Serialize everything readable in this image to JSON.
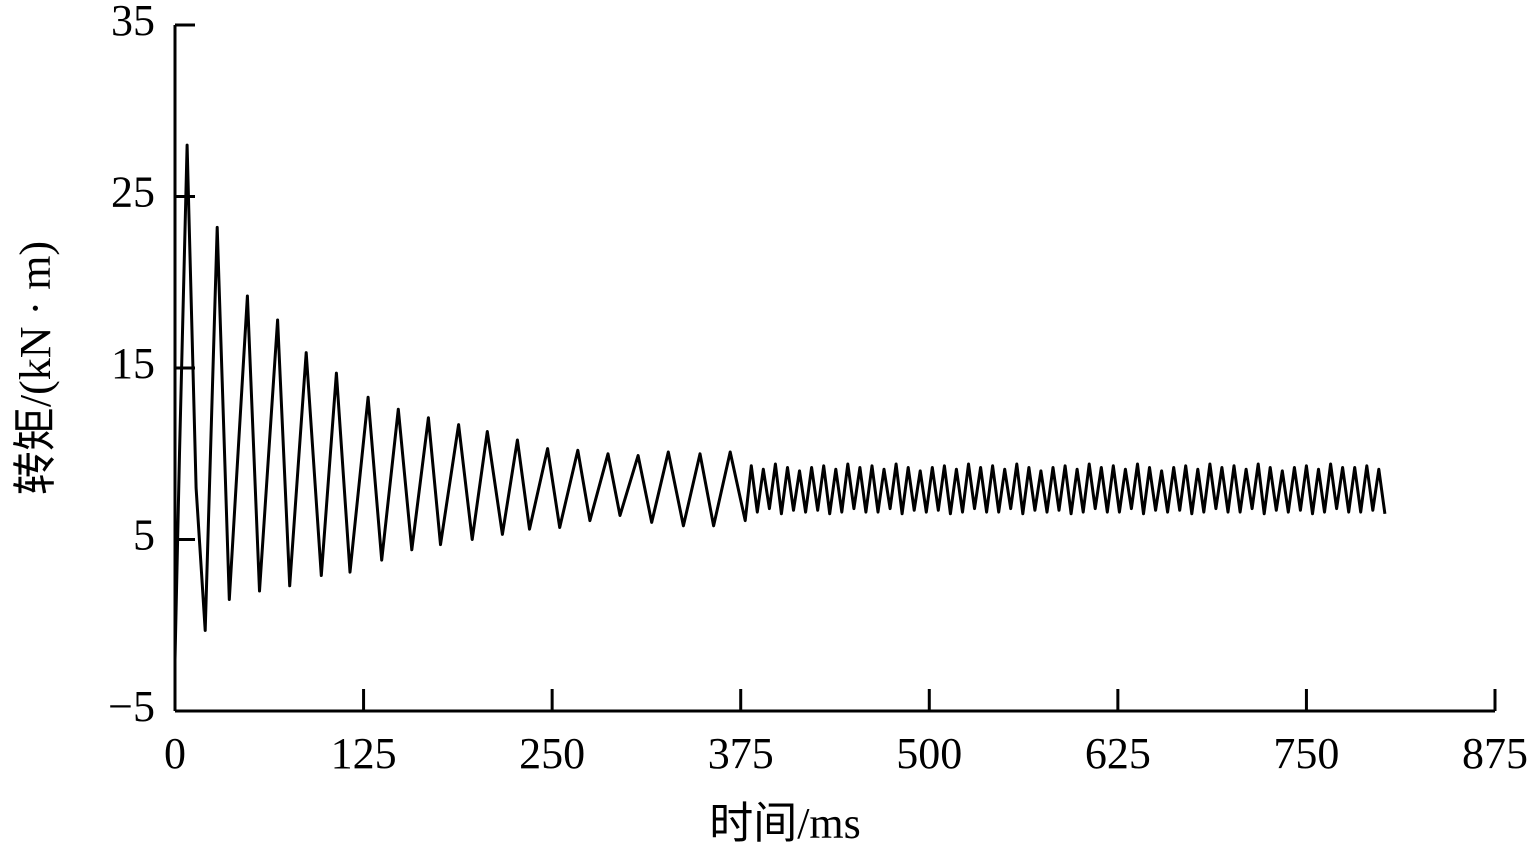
{
  "chart_data": {
    "type": "line",
    "xlabel": "时间/ms",
    "ylabel": "转矩/(kN · m)",
    "xlim": [
      0,
      875
    ],
    "xticks": [
      0,
      125,
      250,
      375,
      500,
      625,
      750,
      875
    ],
    "ylim": [
      -5,
      35
    ],
    "yticks": [
      {
        "value": -5,
        "label": "−5"
      },
      5,
      15,
      25,
      35
    ],
    "color": "#000000",
    "x": [
      0,
      3,
      8,
      14,
      20,
      28,
      36,
      48,
      56,
      68,
      76,
      87,
      97,
      107,
      116,
      128,
      137,
      148,
      157,
      168,
      176,
      188,
      197,
      207,
      217,
      227,
      235,
      247,
      255,
      267,
      275,
      287,
      295,
      307,
      316,
      327,
      337,
      348,
      357,
      368,
      378,
      382,
      386,
      390,
      394,
      398,
      402,
      406,
      410,
      414,
      418,
      422,
      426,
      430,
      434,
      438,
      442,
      446,
      450,
      454,
      458,
      462,
      466,
      470,
      474,
      478,
      482,
      486,
      490,
      494,
      498,
      502,
      506,
      510,
      514,
      518,
      522,
      526,
      530,
      534,
      538,
      542,
      546,
      550,
      554,
      558,
      562,
      566,
      570,
      574,
      578,
      582,
      586,
      590,
      594,
      598,
      602,
      606,
      610,
      614,
      618,
      622,
      626,
      630,
      634,
      638,
      642,
      646,
      650,
      654,
      658,
      662,
      666,
      670,
      674,
      678,
      682,
      686,
      690,
      694,
      698,
      702,
      706,
      710,
      714,
      718,
      722,
      726,
      730,
      734,
      738,
      742,
      746,
      750,
      754,
      758,
      762,
      766,
      770,
      774,
      778,
      782,
      786,
      790,
      794,
      798,
      802
    ],
    "values": [
      -2,
      10,
      28,
      8,
      -0.3,
      23.2,
      1.5,
      19.2,
      2,
      17.8,
      2.3,
      15.9,
      2.9,
      14.7,
      3.1,
      13.3,
      3.8,
      12.6,
      4.4,
      12.1,
      4.7,
      11.7,
      5,
      11.3,
      5.3,
      10.8,
      5.6,
      10.3,
      5.7,
      10.2,
      6.1,
      10,
      6.4,
      9.9,
      6,
      10.1,
      5.8,
      10,
      5.8,
      10.1,
      6.1,
      9.3,
      6.6,
      9.1,
      6.8,
      9.4,
      6.5,
      9.2,
      6.7,
      9.0,
      6.6,
      9.2,
      6.7,
      9.3,
      6.5,
      9.1,
      6.6,
      9.4,
      6.8,
      9.2,
      6.6,
      9.3,
      6.6,
      9.1,
      6.8,
      9.4,
      6.5,
      9.2,
      6.7,
      9.0,
      6.6,
      9.2,
      6.7,
      9.3,
      6.5,
      9.1,
      6.6,
      9.4,
      6.8,
      9.2,
      6.6,
      9.3,
      6.6,
      9.1,
      6.8,
      9.4,
      6.5,
      9.2,
      6.7,
      9.0,
      6.6,
      9.2,
      6.7,
      9.3,
      6.5,
      9.1,
      6.6,
      9.4,
      6.8,
      9.2,
      6.6,
      9.3,
      6.6,
      9.1,
      6.8,
      9.4,
      6.5,
      9.2,
      6.7,
      9.0,
      6.6,
      9.2,
      6.7,
      9.3,
      6.5,
      9.1,
      6.6,
      9.4,
      6.8,
      9.2,
      6.6,
      9.3,
      6.6,
      9.1,
      6.8,
      9.4,
      6.5,
      9.2,
      6.7,
      9.0,
      6.6,
      9.2,
      6.7,
      9.3,
      6.5,
      9.1,
      6.6,
      9.4,
      6.8,
      9.2,
      6.6,
      9.2,
      6.6,
      9.3,
      6.7,
      9.1,
      6.5
    ]
  }
}
